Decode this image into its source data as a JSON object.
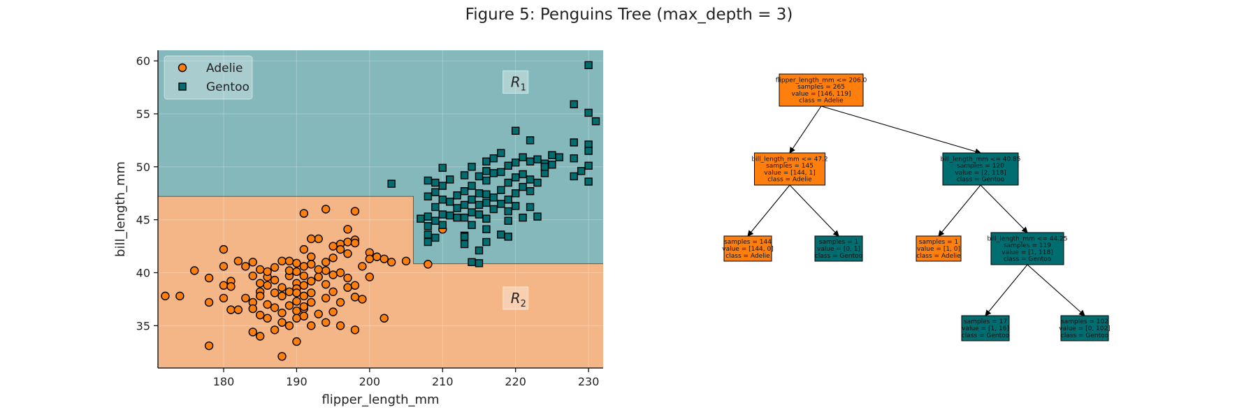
{
  "figure_title": "Figure 5: Penguins Tree (max_depth = 3)",
  "colors": {
    "adelie": "#ff7f0e",
    "gentoo": "#006d70",
    "region_adelie": "#f4b686",
    "region_gentoo": "#84b8ba"
  },
  "chart_data": [
    {
      "type": "scatter",
      "title": "",
      "xlabel": "flipper_length_mm",
      "ylabel": "bill_length_mm",
      "xlim": [
        171,
        232
      ],
      "ylim": [
        31,
        61
      ],
      "x_ticks": [
        180,
        190,
        200,
        210,
        220,
        230
      ],
      "y_ticks": [
        35,
        40,
        45,
        50,
        55,
        60
      ],
      "grid": true,
      "legend_position": "top-left",
      "regions": [
        {
          "label_main": "R",
          "label_sub": "1",
          "label_x": 220,
          "label_y": 58,
          "class": "Gentoo"
        },
        {
          "label_main": "R",
          "label_sub": "2",
          "label_x": 220,
          "label_y": 37.6,
          "class": "Adelie"
        }
      ],
      "decision_boundary": {
        "flipper_split": 206.0,
        "bill_split_left": 47.2,
        "bill_split_right": 40.85
      },
      "series": [
        {
          "name": "Adelie",
          "marker": "circle",
          "points": [
            [
              172,
              37.8
            ],
            [
              174,
              37.8
            ],
            [
              176,
              40.2
            ],
            [
              178,
              39.5
            ],
            [
              178,
              37.2
            ],
            [
              178,
              33.1
            ],
            [
              180,
              42.2
            ],
            [
              180,
              40.6
            ],
            [
              180,
              38.8
            ],
            [
              180,
              37.6
            ],
            [
              181,
              39.2
            ],
            [
              181,
              38.7
            ],
            [
              181,
              36.5
            ],
            [
              182,
              41.1
            ],
            [
              182,
              36.5
            ],
            [
              183,
              40.6
            ],
            [
              183,
              37.6
            ],
            [
              184,
              41.0
            ],
            [
              184,
              39.7
            ],
            [
              184,
              37.2
            ],
            [
              184,
              36.6
            ],
            [
              184,
              34.4
            ],
            [
              185,
              40.3
            ],
            [
              185,
              39.0
            ],
            [
              185,
              38.2
            ],
            [
              185,
              36.0
            ],
            [
              185,
              34.0
            ],
            [
              186,
              39.6
            ],
            [
              186,
              38.8
            ],
            [
              186,
              37.0
            ],
            [
              186,
              35.7
            ],
            [
              187,
              40.5
            ],
            [
              187,
              39.3
            ],
            [
              187,
              38.1
            ],
            [
              187,
              36.7
            ],
            [
              187,
              34.6
            ],
            [
              188,
              41.1
            ],
            [
              188,
              38.6
            ],
            [
              188,
              37.8
            ],
            [
              188,
              36.2
            ],
            [
              188,
              35.3
            ],
            [
              188,
              32.1
            ],
            [
              189,
              41.1
            ],
            [
              189,
              39.7
            ],
            [
              189,
              38.2
            ],
            [
              189,
              36.9
            ],
            [
              189,
              35.0
            ],
            [
              190,
              40.9
            ],
            [
              190,
              39.0
            ],
            [
              190,
              38.5
            ],
            [
              190,
              38.1
            ],
            [
              190,
              37.3
            ],
            [
              190,
              36.4
            ],
            [
              190,
              35.7
            ],
            [
              190,
              33.5
            ],
            [
              191,
              45.6
            ],
            [
              191,
              42.2
            ],
            [
              191,
              40.6
            ],
            [
              191,
              39.7
            ],
            [
              191,
              38.8
            ],
            [
              191,
              37.8
            ],
            [
              191,
              36.6
            ],
            [
              191,
              35.9
            ],
            [
              192,
              41.5
            ],
            [
              192,
              40.8
            ],
            [
              192,
              39.2
            ],
            [
              192,
              38.1
            ],
            [
              192,
              37.2
            ],
            [
              192,
              35.0
            ],
            [
              193,
              43.2
            ],
            [
              193,
              39.6
            ],
            [
              193,
              36.1
            ],
            [
              194,
              41.0
            ],
            [
              194,
              40.2
            ],
            [
              194,
              38.9
            ],
            [
              194,
              37.6
            ],
            [
              194,
              35.3
            ],
            [
              195,
              42.5
            ],
            [
              195,
              41.4
            ],
            [
              195,
              39.8
            ],
            [
              195,
              38.2
            ],
            [
              195,
              36.3
            ],
            [
              196,
              42.7
            ],
            [
              196,
              40.0
            ],
            [
              196,
              37.2
            ],
            [
              196,
              35.0
            ],
            [
              197,
              44.1
            ],
            [
              197,
              41.8
            ],
            [
              197,
              42.9
            ],
            [
              197,
              39.5
            ],
            [
              197,
              38.6
            ],
            [
              198,
              45.8
            ],
            [
              198,
              43.1
            ],
            [
              198,
              42.8
            ],
            [
              198,
              38.8
            ],
            [
              198,
              37.7
            ],
            [
              198,
              34.6
            ],
            [
              199,
              40.6
            ],
            [
              199,
              37.5
            ],
            [
              200,
              41.9
            ],
            [
              200,
              39.6
            ],
            [
              201,
              41.5
            ],
            [
              202,
              41.3
            ],
            [
              202,
              35.7
            ],
            [
              203,
              41.0
            ],
            [
              205,
              41.1
            ],
            [
              208,
              40.8
            ],
            [
              210,
              44.1
            ],
            [
              185,
              37.8
            ],
            [
              186,
              40.1
            ],
            [
              189,
              40.2
            ],
            [
              190,
              40.1
            ],
            [
              193,
              40.3
            ],
            [
              196,
              42.2
            ],
            [
              200,
              41.3
            ],
            [
              191,
              36.8
            ],
            [
              194,
              46.0
            ],
            [
              192,
              43.2
            ]
          ]
        },
        {
          "name": "Gentoo",
          "marker": "square",
          "points": [
            [
              203,
              48.4
            ],
            [
              207,
              45.1
            ],
            [
              208,
              48.7
            ],
            [
              208,
              47.2
            ],
            [
              208,
              45.3
            ],
            [
              208,
              43.6
            ],
            [
              208,
              42.9
            ],
            [
              209,
              48.5
            ],
            [
              209,
              47.6
            ],
            [
              209,
              46.2
            ],
            [
              209,
              44.9
            ],
            [
              209,
              43.3
            ],
            [
              210,
              49.9
            ],
            [
              210,
              48.2
            ],
            [
              210,
              46.9
            ],
            [
              210,
              45.5
            ],
            [
              210,
              44.5
            ],
            [
              211,
              48.8
            ],
            [
              211,
              46.7
            ],
            [
              211,
              45.4
            ],
            [
              212,
              46.1
            ],
            [
              212,
              45.2
            ],
            [
              212,
              47.3
            ],
            [
              213,
              49.2
            ],
            [
              213,
              47.7
            ],
            [
              213,
              46.4
            ],
            [
              213,
              45.2
            ],
            [
              213,
              43.5
            ],
            [
              213,
              42.7
            ],
            [
              214,
              50.0
            ],
            [
              214,
              48.2
            ],
            [
              214,
              46.9
            ],
            [
              214,
              45.7
            ],
            [
              214,
              44.5
            ],
            [
              214,
              41.0
            ],
            [
              215,
              49.1
            ],
            [
              215,
              47.5
            ],
            [
              215,
              46.4
            ],
            [
              215,
              45.5
            ],
            [
              215,
              40.9
            ],
            [
              216,
              50.5
            ],
            [
              216,
              49.6
            ],
            [
              216,
              48.7
            ],
            [
              216,
              47.4
            ],
            [
              216,
              46.6
            ],
            [
              216,
              45.1
            ],
            [
              216,
              44.1
            ],
            [
              216,
              42.9
            ],
            [
              217,
              50.8
            ],
            [
              217,
              49.4
            ],
            [
              217,
              47.1
            ],
            [
              217,
              46.0
            ],
            [
              218,
              51.3
            ],
            [
              218,
              49.5
            ],
            [
              218,
              47.8
            ],
            [
              218,
              46.5
            ],
            [
              218,
              43.6
            ],
            [
              219,
              50.1
            ],
            [
              219,
              48.5
            ],
            [
              219,
              46.9
            ],
            [
              219,
              45.8
            ],
            [
              219,
              44.9
            ],
            [
              219,
              43.4
            ],
            [
              220,
              53.4
            ],
            [
              220,
              50.4
            ],
            [
              220,
              49.0
            ],
            [
              220,
              47.5
            ],
            [
              220,
              46.3
            ],
            [
              221,
              50.9
            ],
            [
              221,
              49.3
            ],
            [
              221,
              48.1
            ],
            [
              221,
              45.2
            ],
            [
              222,
              52.5
            ],
            [
              222,
              50.5
            ],
            [
              222,
              48.8
            ],
            [
              222,
              47.7
            ],
            [
              222,
              46.2
            ],
            [
              223,
              50.7
            ],
            [
              223,
              48.5
            ],
            [
              223,
              45.3
            ],
            [
              224,
              50.3
            ],
            [
              224,
              49.4
            ],
            [
              224,
              50.0
            ],
            [
              225,
              50.2
            ],
            [
              225,
              51.1
            ],
            [
              226,
              50.9
            ],
            [
              228,
              55.9
            ],
            [
              228,
              52.3
            ],
            [
              228,
              50.8
            ],
            [
              228,
              49.1
            ],
            [
              229,
              49.6
            ],
            [
              230,
              59.6
            ],
            [
              230,
              55.1
            ],
            [
              230,
              52.1
            ],
            [
              230,
              51.5
            ],
            [
              230,
              50.1
            ],
            [
              230,
              48.6
            ],
            [
              231,
              54.3
            ],
            [
              213,
              43.4
            ],
            [
              215,
              42.1
            ],
            [
              208,
              44.4
            ]
          ]
        }
      ]
    },
    {
      "type": "tree",
      "title": "",
      "nodes": [
        {
          "id": "n0",
          "lines": [
            "flipper_length_mm <= 206.0",
            "samples = 265",
            "value = [146, 119]",
            "class = Adelie"
          ],
          "class": "Adelie"
        },
        {
          "id": "n1",
          "lines": [
            "bill_length_mm <= 47.2",
            "samples = 145",
            "value = [144, 1]",
            "class = Adelie"
          ],
          "class": "Adelie"
        },
        {
          "id": "n2",
          "lines": [
            "bill_length_mm <= 40.85",
            "samples = 120",
            "value = [2, 118]",
            "class = Gentoo"
          ],
          "class": "Gentoo"
        },
        {
          "id": "n3",
          "lines": [
            "samples = 144",
            "value = [144, 0]",
            "class = Adelie"
          ],
          "class": "Adelie"
        },
        {
          "id": "n4",
          "lines": [
            "samples = 1",
            "value = [0, 1]",
            "class = Gentoo"
          ],
          "class": "Gentoo"
        },
        {
          "id": "n5",
          "lines": [
            "samples = 1",
            "value = [1, 0]",
            "class = Adelie"
          ],
          "class": "Adelie"
        },
        {
          "id": "n6",
          "lines": [
            "bill_length_mm <= 44.25",
            "samples = 119",
            "value = [1, 118]",
            "class = Gentoo"
          ],
          "class": "Gentoo"
        },
        {
          "id": "n7",
          "lines": [
            "samples = 17",
            "value = [1, 16]",
            "class = Gentoo"
          ],
          "class": "Gentoo"
        },
        {
          "id": "n8",
          "lines": [
            "samples = 102",
            "value = [0, 102]",
            "class = Gentoo"
          ],
          "class": "Gentoo"
        }
      ],
      "edges": [
        [
          "n0",
          "n1"
        ],
        [
          "n0",
          "n2"
        ],
        [
          "n1",
          "n3"
        ],
        [
          "n1",
          "n4"
        ],
        [
          "n2",
          "n5"
        ],
        [
          "n2",
          "n6"
        ],
        [
          "n6",
          "n7"
        ],
        [
          "n6",
          "n8"
        ]
      ]
    }
  ]
}
